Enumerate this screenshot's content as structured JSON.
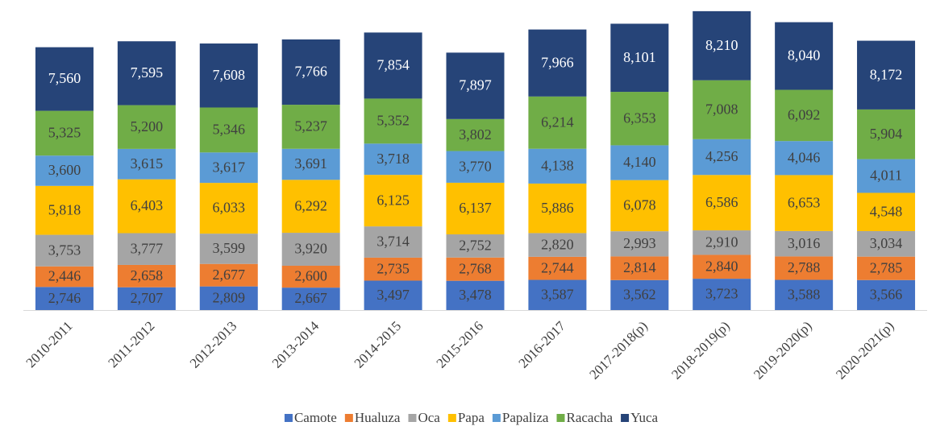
{
  "chart_data": {
    "type": "stacked_bar",
    "categories": [
      "2010-2011",
      "2011-2012",
      "2012-2013",
      "2013-2014",
      "2014-2015",
      "2015-2016",
      "2016-2017",
      "2017-2018(p)",
      "2018-2019(p)",
      "2019-2020(p)",
      "2020-2021(p)"
    ],
    "ylim": [
      0,
      36000
    ],
    "legend": "bottom",
    "series": [
      {
        "name": "Camote",
        "color": "#4472c4",
        "values": [
          2746,
          2707,
          2809,
          2667,
          3497,
          3478,
          3587,
          3562,
          3723,
          3588,
          3566
        ],
        "value_labels": [
          "2,746",
          "2,707",
          "2,809",
          "2,667",
          "3,497",
          "3,478",
          "3,587",
          "3,562",
          "3,723",
          "3,588",
          "3,566"
        ]
      },
      {
        "name": "Hualuza",
        "color": "#ed7d31",
        "values": [
          2446,
          2658,
          2677,
          2600,
          2735,
          2768,
          2744,
          2814,
          2840,
          2788,
          2785
        ],
        "value_labels": [
          "2,446",
          "2,658",
          "2,677",
          "2,600",
          "2,735",
          "2,768",
          "2,744",
          "2,814",
          "2,840",
          "2,788",
          "2,785"
        ]
      },
      {
        "name": "Oca",
        "color": "#a5a5a5",
        "values": [
          3753,
          3777,
          3599,
          3920,
          3714,
          2752,
          2820,
          2993,
          2910,
          3016,
          3034
        ],
        "value_labels": [
          "3,753",
          "3,777",
          "3,599",
          "3,920",
          "3,714",
          "2,752",
          "2,820",
          "2,993",
          "2,910",
          "3,016",
          "3,034"
        ]
      },
      {
        "name": "Papa",
        "color": "#ffc000",
        "values": [
          5818,
          6403,
          6033,
          6292,
          6125,
          6137,
          5886,
          6078,
          6586,
          6653,
          4548
        ],
        "value_labels": [
          "5,818",
          "6,403",
          "6,033",
          "6,292",
          "6,125",
          "6,137",
          "5,886",
          "6,078",
          "6,586",
          "6,653",
          "4,548"
        ]
      },
      {
        "name": "Papaliza",
        "color": "#5b9bd5",
        "values": [
          3600,
          3615,
          3617,
          3691,
          3718,
          3770,
          4138,
          4140,
          4256,
          4046,
          4011
        ],
        "value_labels": [
          "3,600",
          "3,615",
          "3,617",
          "3,691",
          "3,718",
          "3,770",
          "4,138",
          "4,140",
          "4,256",
          "4,046",
          "4,011"
        ]
      },
      {
        "name": "Racacha",
        "color": "#70ad47",
        "values": [
          5325,
          5200,
          5346,
          5237,
          5352,
          3802,
          6214,
          6353,
          7008,
          6092,
          5904
        ],
        "value_labels": [
          "5,325",
          "5,200",
          "5,346",
          "5,237",
          "5,352",
          "3,802",
          "6,214",
          "6,353",
          "7,008",
          "6,092",
          "5,904"
        ]
      },
      {
        "name": "Yuca",
        "color": "#264478",
        "values": [
          7560,
          7595,
          7608,
          7766,
          7854,
          7897,
          7966,
          8101,
          8210,
          8040,
          8172
        ],
        "value_labels": [
          "7,560",
          "7,595",
          "7,608",
          "7,766",
          "7,854",
          "7,897",
          "7,966",
          "8,101",
          "8,210",
          "8,040",
          "8,172"
        ]
      }
    ]
  }
}
